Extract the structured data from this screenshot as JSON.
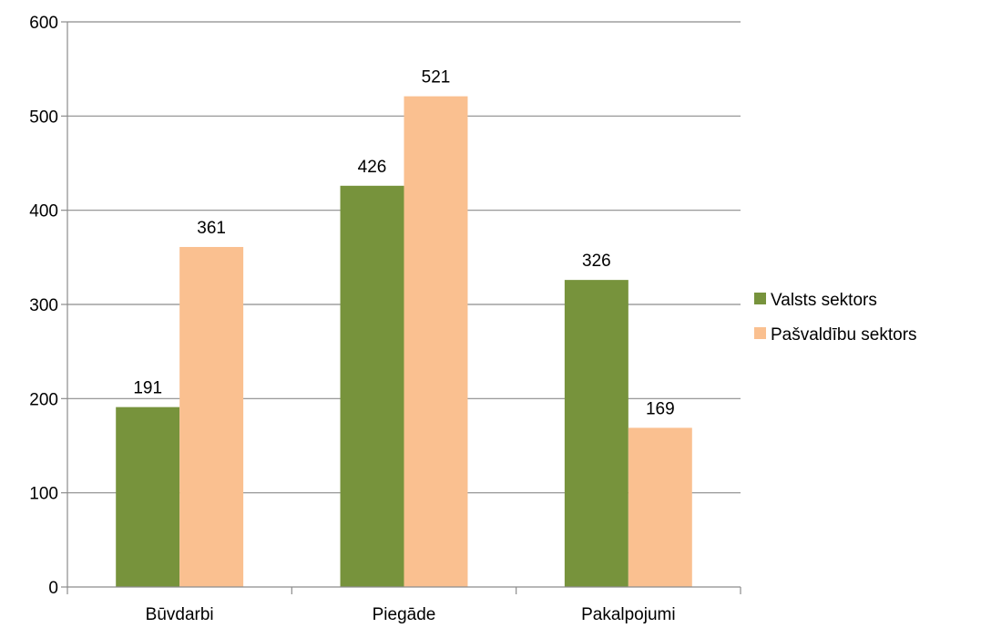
{
  "chart_data": {
    "type": "bar",
    "categories": [
      "Būvdarbi",
      "Piegāde",
      "Pakalpojumi"
    ],
    "series": [
      {
        "name": "Valsts sektors",
        "values": [
          191,
          426,
          326
        ],
        "color": "#77933C"
      },
      {
        "name": "Pašvaldību sektors",
        "values": [
          361,
          521,
          169
        ],
        "color": "#FAC090"
      }
    ],
    "yticks": [
      0,
      100,
      200,
      300,
      400,
      500,
      600
    ],
    "ylim": [
      0,
      600
    ],
    "grid": true,
    "legend": "right",
    "title": "",
    "xlabel": "",
    "ylabel": ""
  }
}
